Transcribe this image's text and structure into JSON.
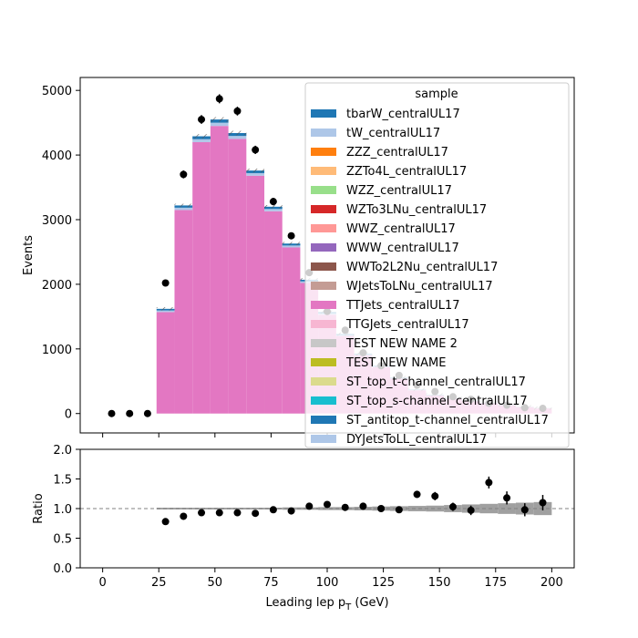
{
  "chart_data": [
    {
      "type": "bar",
      "panel": "main",
      "stacked": true,
      "ylabel": "Events",
      "xlabel": "",
      "xlim": [
        -10,
        210
      ],
      "ylim": [
        -300,
        5200
      ],
      "x_ticks": [
        0,
        25,
        50,
        75,
        100,
        125,
        150,
        175,
        200
      ],
      "y_ticks": [
        0,
        1000,
        2000,
        3000,
        4000,
        5000
      ],
      "bin_edges": [
        0,
        8,
        16,
        24,
        32,
        40,
        48,
        56,
        64,
        72,
        80,
        88,
        96,
        104,
        112,
        120,
        128,
        136,
        144,
        152,
        160,
        168,
        176,
        184,
        192,
        200
      ],
      "series": [
        {
          "name": "TTJets_centralUL17",
          "color": "#e377c2",
          "values": [
            0,
            0,
            0,
            1570,
            3150,
            4200,
            4450,
            4250,
            3680,
            3130,
            2570,
            2020,
            1530,
            1200,
            900,
            720,
            540,
            360,
            280,
            230,
            190,
            160,
            130,
            100,
            80
          ]
        },
        {
          "name": "tW_centralUL17",
          "color": "#aec7e8",
          "values": [
            0,
            0,
            0,
            25,
            35,
            45,
            50,
            45,
            40,
            35,
            30,
            25,
            20,
            15,
            12,
            10,
            8,
            6,
            5,
            4,
            3,
            3,
            2,
            2,
            2
          ]
        },
        {
          "name": "tbarW_centralUL17",
          "color": "#1f77b4",
          "values": [
            0,
            0,
            0,
            25,
            35,
            45,
            50,
            45,
            40,
            35,
            30,
            25,
            20,
            15,
            12,
            10,
            8,
            6,
            5,
            4,
            3,
            3,
            2,
            2,
            2
          ]
        }
      ],
      "data_points": [
        {
          "x": 4,
          "y": 0
        },
        {
          "x": 12,
          "y": 0
        },
        {
          "x": 20,
          "y": 0
        },
        {
          "x": 28,
          "y": 2020
        },
        {
          "x": 36,
          "y": 3700
        },
        {
          "x": 44,
          "y": 4550
        },
        {
          "x": 52,
          "y": 4870
        },
        {
          "x": 60,
          "y": 4680
        },
        {
          "x": 68,
          "y": 4080
        },
        {
          "x": 76,
          "y": 3280
        },
        {
          "x": 84,
          "y": 2750
        },
        {
          "x": 92,
          "y": 2180
        },
        {
          "x": 100,
          "y": 1580
        },
        {
          "x": 108,
          "y": 1290
        },
        {
          "x": 116,
          "y": 940
        },
        {
          "x": 124,
          "y": 740
        },
        {
          "x": 132,
          "y": 590
        },
        {
          "x": 140,
          "y": 440
        },
        {
          "x": 148,
          "y": 340
        },
        {
          "x": 156,
          "y": 260
        },
        {
          "x": 164,
          "y": 220
        },
        {
          "x": 172,
          "y": 160
        },
        {
          "x": 180,
          "y": 130
        },
        {
          "x": 188,
          "y": 90
        },
        {
          "x": 196,
          "y": 80
        }
      ],
      "legend": {
        "title": "sample",
        "placement": "top-right",
        "entries": [
          {
            "label": "tbarW_centralUL17",
            "color": "#1f77b4"
          },
          {
            "label": "tW_centralUL17",
            "color": "#aec7e8"
          },
          {
            "label": "ZZZ_centralUL17",
            "color": "#ff7f0e"
          },
          {
            "label": "ZZTo4L_centralUL17",
            "color": "#ffbb78"
          },
          {
            "label": "WZZ_centralUL17",
            "color": "#98df8a"
          },
          {
            "label": "WZTo3LNu_centralUL17",
            "color": "#d62728"
          },
          {
            "label": "WWZ_centralUL17",
            "color": "#ff9896"
          },
          {
            "label": "WWW_centralUL17",
            "color": "#9467bd"
          },
          {
            "label": "WWTo2L2Nu_centralUL17",
            "color": "#8c564b"
          },
          {
            "label": "WJetsToLNu_centralUL17",
            "color": "#c49c94"
          },
          {
            "label": "TTJets_centralUL17",
            "color": "#e377c2"
          },
          {
            "label": "TTGJets_centralUL17",
            "color": "#f7b6d2"
          },
          {
            "label": "TEST NEW NAME 2",
            "color": "#c7c7c7"
          },
          {
            "label": "TEST NEW NAME",
            "color": "#bcbd22"
          },
          {
            "label": "ST_top_t-channel_centralUL17",
            "color": "#dbdb8d"
          },
          {
            "label": "ST_top_s-channel_centralUL17",
            "color": "#17becf"
          },
          {
            "label": "ST_antitop_t-channel_centralUL17",
            "color": "#1f77b4"
          },
          {
            "label": "DYJetsToLL_centralUL17",
            "color": "#aec7e8"
          }
        ]
      }
    },
    {
      "type": "scatter",
      "panel": "ratio",
      "ylabel": "Ratio",
      "xlabel": "Leading lep p_T (GeV)",
      "xlim": [
        -10,
        210
      ],
      "ylim": [
        0.0,
        2.0
      ],
      "x_ticks": [
        0,
        25,
        50,
        75,
        100,
        125,
        150,
        175,
        200
      ],
      "y_ticks": [
        "0.0",
        "0.5",
        "1.0",
        "1.5",
        "2.0"
      ],
      "reference_line": 1.0,
      "points": [
        {
          "x": 28,
          "y": 0.78,
          "err": 0.02
        },
        {
          "x": 36,
          "y": 0.87,
          "err": 0.02
        },
        {
          "x": 44,
          "y": 0.93,
          "err": 0.02
        },
        {
          "x": 52,
          "y": 0.93,
          "err": 0.02
        },
        {
          "x": 60,
          "y": 0.93,
          "err": 0.02
        },
        {
          "x": 68,
          "y": 0.92,
          "err": 0.02
        },
        {
          "x": 76,
          "y": 0.98,
          "err": 0.02
        },
        {
          "x": 84,
          "y": 0.96,
          "err": 0.02
        },
        {
          "x": 92,
          "y": 1.04,
          "err": 0.03
        },
        {
          "x": 100,
          "y": 1.07,
          "err": 0.03
        },
        {
          "x": 108,
          "y": 1.02,
          "err": 0.03
        },
        {
          "x": 116,
          "y": 1.04,
          "err": 0.04
        },
        {
          "x": 124,
          "y": 1.0,
          "err": 0.04
        },
        {
          "x": 132,
          "y": 0.98,
          "err": 0.05
        },
        {
          "x": 140,
          "y": 1.24,
          "err": 0.06
        },
        {
          "x": 148,
          "y": 1.21,
          "err": 0.07
        },
        {
          "x": 156,
          "y": 1.03,
          "err": 0.07
        },
        {
          "x": 164,
          "y": 0.97,
          "err": 0.08
        },
        {
          "x": 172,
          "y": 1.44,
          "err": 0.1
        },
        {
          "x": 180,
          "y": 1.18,
          "err": 0.11
        },
        {
          "x": 188,
          "y": 0.98,
          "err": 0.11
        },
        {
          "x": 196,
          "y": 1.1,
          "err": 0.13
        }
      ],
      "uncertainty_band": [
        {
          "x0": 24,
          "x1": 32,
          "lo": 0.985,
          "hi": 1.015
        },
        {
          "x0": 32,
          "x1": 40,
          "lo": 0.985,
          "hi": 1.015
        },
        {
          "x0": 40,
          "x1": 48,
          "lo": 0.985,
          "hi": 1.015
        },
        {
          "x0": 48,
          "x1": 56,
          "lo": 0.985,
          "hi": 1.015
        },
        {
          "x0": 56,
          "x1": 64,
          "lo": 0.985,
          "hi": 1.015
        },
        {
          "x0": 64,
          "x1": 72,
          "lo": 0.985,
          "hi": 1.015
        },
        {
          "x0": 72,
          "x1": 80,
          "lo": 0.985,
          "hi": 1.015
        },
        {
          "x0": 80,
          "x1": 88,
          "lo": 0.98,
          "hi": 1.02
        },
        {
          "x0": 88,
          "x1": 96,
          "lo": 0.98,
          "hi": 1.02
        },
        {
          "x0": 96,
          "x1": 104,
          "lo": 0.975,
          "hi": 1.025
        },
        {
          "x0": 104,
          "x1": 112,
          "lo": 0.975,
          "hi": 1.025
        },
        {
          "x0": 112,
          "x1": 120,
          "lo": 0.97,
          "hi": 1.03
        },
        {
          "x0": 120,
          "x1": 128,
          "lo": 0.965,
          "hi": 1.035
        },
        {
          "x0": 128,
          "x1": 136,
          "lo": 0.96,
          "hi": 1.04
        },
        {
          "x0": 136,
          "x1": 144,
          "lo": 0.955,
          "hi": 1.045
        },
        {
          "x0": 144,
          "x1": 152,
          "lo": 0.95,
          "hi": 1.05
        },
        {
          "x0": 152,
          "x1": 160,
          "lo": 0.94,
          "hi": 1.06
        },
        {
          "x0": 160,
          "x1": 168,
          "lo": 0.93,
          "hi": 1.07
        },
        {
          "x0": 168,
          "x1": 176,
          "lo": 0.92,
          "hi": 1.08
        },
        {
          "x0": 176,
          "x1": 184,
          "lo": 0.91,
          "hi": 1.09
        },
        {
          "x0": 184,
          "x1": 192,
          "lo": 0.9,
          "hi": 1.1
        },
        {
          "x0": 192,
          "x1": 200,
          "lo": 0.89,
          "hi": 1.11
        }
      ]
    }
  ]
}
